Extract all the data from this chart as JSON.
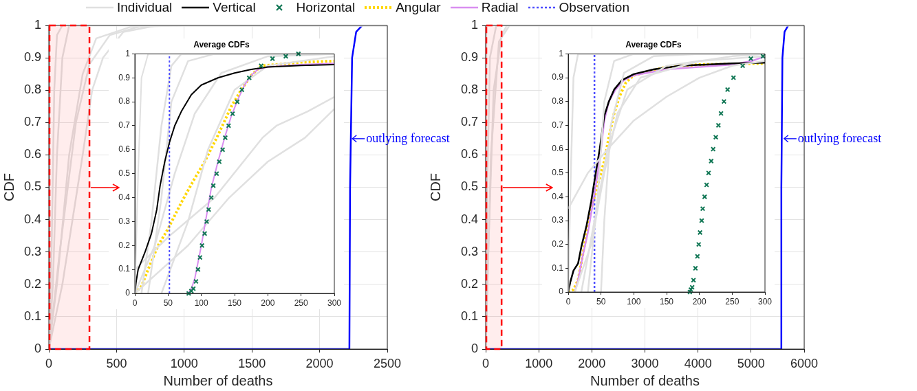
{
  "chart_data": [
    {
      "type": "line",
      "xlabel": "Number of deaths",
      "ylabel": "CDF",
      "xlim": [
        0,
        2500
      ],
      "xticks": [
        0,
        500,
        1000,
        1500,
        2000,
        2500
      ],
      "ylim": [
        0,
        1
      ],
      "yticks": [
        0,
        0.1,
        0.2,
        0.3,
        0.4,
        0.5,
        0.6,
        0.7,
        0.8,
        0.9,
        1
      ],
      "grid": true,
      "annotations": [
        {
          "text": "outlying forecast",
          "x": 2222,
          "y": 0.65
        }
      ],
      "bands": [
        {
          "axis": "x",
          "from": 0,
          "to": 300,
          "color": "#ff0000"
        }
      ],
      "series": [
        {
          "color": "#e0e0e0",
          "x": [
            0,
            20,
            40,
            60,
            100,
            2500
          ],
          "values": [
            0,
            0.3,
            0.8,
            0.97,
            1,
            1
          ]
        },
        {
          "color": "#e0e0e0",
          "x": [
            0,
            30,
            60,
            100,
            150,
            2500
          ],
          "values": [
            0,
            0.2,
            0.6,
            0.9,
            1,
            1
          ]
        },
        {
          "color": "#e0e0e0",
          "x": [
            0,
            60,
            150,
            250,
            350,
            600,
            1000,
            2500
          ],
          "values": [
            0,
            0.2,
            0.6,
            0.85,
            0.96,
            0.995,
            1,
            1
          ]
        },
        {
          "color": "#e0e0e0",
          "x": [
            0,
            80,
            200,
            300,
            450,
            700,
            2500
          ],
          "values": [
            0,
            0.3,
            0.7,
            0.88,
            0.97,
            1,
            1
          ]
        },
        {
          "color": "#e0e0e0",
          "x": [
            0,
            100,
            250,
            320,
            400,
            550,
            800,
            2500
          ],
          "values": [
            0,
            0.2,
            0.6,
            0.8,
            0.9,
            0.98,
            1,
            1
          ]
        },
        {
          "color": "#0000ff",
          "x": [
            0,
            2220,
            2225,
            2240,
            2270,
            2315
          ],
          "values": [
            0,
            0,
            0.5,
            0.9,
            0.98,
            1
          ]
        }
      ]
    },
    {
      "type": "line",
      "title": "Average CDFs",
      "xlim": [
        0,
        300
      ],
      "xticks": [
        0,
        50,
        100,
        150,
        200,
        250,
        300
      ],
      "ylim": [
        0,
        1
      ],
      "yticks": [
        0,
        0.1,
        0.2,
        0.3,
        0.4,
        0.5,
        0.6,
        0.7,
        0.8,
        0.9,
        1
      ],
      "legend": "top",
      "series": [
        {
          "name": "Individual",
          "color": "#e0e0e0",
          "x": [
            0,
            5,
            10,
            20,
            300
          ],
          "values": [
            0,
            0.5,
            0.9,
            1,
            1
          ]
        },
        {
          "color": "#e0e0e0",
          "x": [
            10,
            25,
            40,
            55,
            70,
            300
          ],
          "values": [
            0,
            0.3,
            0.7,
            0.95,
            1,
            1
          ]
        },
        {
          "color": "#e0e0e0",
          "x": [
            20,
            40,
            55,
            80,
            120,
            300
          ],
          "values": [
            0,
            0.4,
            0.8,
            0.97,
            1,
            1
          ]
        },
        {
          "color": "#e0e0e0",
          "x": [
            0,
            30,
            60,
            90,
            130,
            200,
            300
          ],
          "values": [
            0,
            0.2,
            0.5,
            0.75,
            0.92,
            0.99,
            1
          ]
        },
        {
          "color": "#e0e0e0",
          "x": [
            0,
            52,
            120,
            192,
            213,
            260,
            300
          ],
          "values": [
            0.1,
            0.24,
            0.4,
            0.65,
            0.7,
            0.76,
            0.82
          ]
        },
        {
          "color": "#e0e0e0",
          "x": [
            0,
            80,
            142,
            200,
            256,
            300
          ],
          "values": [
            0,
            0.2,
            0.4,
            0.55,
            0.65,
            0.77
          ]
        },
        {
          "color": "#e0e0e0",
          "x": [
            40,
            80,
            110,
            150,
            200,
            300
          ],
          "values": [
            0,
            0.3,
            0.6,
            0.85,
            0.95,
            0.99
          ]
        },
        {
          "name": "Vertical",
          "color": "#000000",
          "line_style": "solid",
          "x": [
            0,
            2,
            5,
            15,
            25,
            33,
            38,
            45,
            52,
            60,
            70,
            85,
            100,
            125,
            150,
            175,
            200,
            250,
            300
          ],
          "values": [
            0,
            0.05,
            0.1,
            0.17,
            0.25,
            0.35,
            0.45,
            0.55,
            0.63,
            0.7,
            0.76,
            0.83,
            0.87,
            0.9,
            0.92,
            0.935,
            0.945,
            0.952,
            0.955
          ]
        },
        {
          "name": "Horizontal",
          "type": "scatter",
          "marker": "cross",
          "color": "#117755",
          "x": [
            81,
            85,
            88,
            92,
            95,
            98,
            101,
            105,
            108,
            111,
            115,
            118,
            123,
            127,
            132,
            136,
            141,
            147,
            154,
            161,
            172,
            190,
            207,
            227,
            246
          ],
          "values": [
            0,
            0.01,
            0.02,
            0.05,
            0.1,
            0.15,
            0.2,
            0.25,
            0.3,
            0.35,
            0.4,
            0.45,
            0.5,
            0.55,
            0.6,
            0.65,
            0.7,
            0.75,
            0.8,
            0.85,
            0.9,
            0.95,
            0.98,
            0.99,
            1
          ]
        },
        {
          "name": "Angular",
          "color": "#ffd700",
          "line_style": "dotted",
          "x": [
            0,
            10,
            20,
            35,
            50,
            70,
            90,
            105,
            125,
            145,
            160,
            175,
            190,
            250,
            300
          ],
          "values": [
            0,
            0.03,
            0.1,
            0.2,
            0.27,
            0.38,
            0.48,
            0.55,
            0.66,
            0.78,
            0.85,
            0.91,
            0.95,
            0.965,
            0.97
          ]
        },
        {
          "name": "Radial",
          "color": "#d98ef0",
          "line_style": "solid",
          "x": [
            80,
            85,
            90,
            95,
            100,
            105,
            110,
            115,
            125,
            135,
            145,
            155,
            165,
            175,
            185,
            200,
            250,
            300
          ],
          "values": [
            0,
            0.02,
            0.06,
            0.13,
            0.2,
            0.28,
            0.36,
            0.44,
            0.55,
            0.65,
            0.74,
            0.81,
            0.87,
            0.91,
            0.935,
            0.945,
            0.955,
            0.96
          ]
        },
        {
          "name": "Observation",
          "color": "#4d4dff",
          "line_style": "dotted",
          "x": [
            52,
            52
          ],
          "values": [
            0,
            1
          ]
        }
      ]
    },
    {
      "type": "line",
      "xlabel": "Number of deaths",
      "ylabel": "CDF",
      "xlim": [
        0,
        6000
      ],
      "xticks": [
        0,
        1000,
        2000,
        3000,
        4000,
        5000,
        6000
      ],
      "ylim": [
        0,
        1
      ],
      "yticks": [
        0,
        0.1,
        0.2,
        0.3,
        0.4,
        0.5,
        0.6,
        0.7,
        0.8,
        0.9,
        1
      ],
      "grid": true,
      "annotations": [
        {
          "text": "outlying forecast",
          "x": 5570,
          "y": 0.65
        }
      ],
      "bands": [
        {
          "axis": "x",
          "from": 0,
          "to": 300,
          "color": "#ff0000"
        }
      ],
      "series": [
        {
          "color": "#e0e0e0",
          "x": [
            0,
            30,
            80,
            200,
            6000
          ],
          "values": [
            0,
            0.5,
            0.9,
            1,
            1
          ]
        },
        {
          "color": "#e0e0e0",
          "x": [
            0,
            100,
            250,
            450,
            6000
          ],
          "values": [
            0,
            0.6,
            0.95,
            1,
            1
          ]
        },
        {
          "color": "#e0e0e0",
          "x": [
            0,
            50,
            150,
            300,
            400,
            6000
          ],
          "values": [
            0,
            0.3,
            0.8,
            0.97,
            1,
            1
          ]
        },
        {
          "color": "#0000ff",
          "x": [
            0,
            5560,
            5570,
            5590,
            5630,
            5700
          ],
          "values": [
            0,
            0,
            0.5,
            0.9,
            0.98,
            1
          ]
        }
      ]
    },
    {
      "type": "line",
      "title": "Average CDFs",
      "xlim": [
        0,
        300
      ],
      "xticks": [
        0,
        50,
        100,
        150,
        200,
        250,
        300
      ],
      "ylim": [
        0,
        1
      ],
      "yticks": [
        0,
        0.1,
        0.2,
        0.3,
        0.4,
        0.5,
        0.6,
        0.7,
        0.8,
        0.9,
        1
      ],
      "series": [
        {
          "color": "#e0e0e0",
          "x": [
            0,
            3,
            8,
            15,
            300
          ],
          "values": [
            0,
            0.4,
            0.9,
            1,
            1
          ]
        },
        {
          "color": "#e0e0e0",
          "x": [
            30,
            45,
            55,
            70,
            100,
            300
          ],
          "values": [
            0,
            0.4,
            0.8,
            0.97,
            1,
            1
          ]
        },
        {
          "color": "#e0e0e0",
          "x": [
            50,
            55,
            65,
            85,
            130,
            200,
            300
          ],
          "values": [
            0,
            0.3,
            0.7,
            0.92,
            0.99,
            1,
            1
          ]
        },
        {
          "color": "#e0e0e0",
          "x": [
            0,
            30,
            60,
            100,
            150,
            200,
            250,
            300
          ],
          "values": [
            0.35,
            0.5,
            0.6,
            0.72,
            0.82,
            0.9,
            0.95,
            0.97
          ]
        },
        {
          "color": "#e0e0e0",
          "x": [
            20,
            40,
            60,
            90,
            150,
            250,
            300
          ],
          "values": [
            0,
            0.3,
            0.6,
            0.85,
            0.95,
            0.99,
            1
          ]
        },
        {
          "color": "#e0e0e0",
          "x": [
            10,
            35,
            55,
            75,
            110,
            200,
            300
          ],
          "values": [
            0,
            0.2,
            0.5,
            0.75,
            0.9,
            0.97,
            0.99
          ]
        },
        {
          "color": "#000000",
          "line_style": "solid",
          "x": [
            0,
            3,
            8,
            15,
            20,
            28,
            35,
            42,
            48,
            52,
            55,
            62,
            70,
            82,
            100,
            130,
            170,
            250,
            300
          ],
          "values": [
            0,
            0.04,
            0.09,
            0.12,
            0.19,
            0.28,
            0.38,
            0.5,
            0.6,
            0.68,
            0.74,
            0.8,
            0.85,
            0.89,
            0.915,
            0.935,
            0.95,
            0.96,
            0.963
          ]
        },
        {
          "type": "scatter",
          "marker": "cross",
          "color": "#117755",
          "x": [
            185.5,
            187,
            189,
            191,
            194,
            197,
            199,
            201,
            203.5,
            205,
            208,
            211,
            214,
            218,
            221,
            225,
            229,
            233,
            237.5,
            243,
            252,
            266,
            278.5,
            297
          ],
          "values": [
            0,
            0.01,
            0.02,
            0.05,
            0.1,
            0.15,
            0.2,
            0.25,
            0.3,
            0.35,
            0.4,
            0.45,
            0.5,
            0.55,
            0.6,
            0.65,
            0.7,
            0.75,
            0.8,
            0.85,
            0.9,
            0.95,
            0.98,
            0.99
          ]
        },
        {
          "color": "#ffd700",
          "line_style": "dotted",
          "x": [
            0,
            8,
            15,
            25,
            35,
            48,
            55,
            62,
            70,
            78,
            88,
            100,
            150,
            200,
            300
          ],
          "values": [
            0,
            0.01,
            0.05,
            0.2,
            0.35,
            0.48,
            0.55,
            0.65,
            0.75,
            0.82,
            0.88,
            0.91,
            0.945,
            0.955,
            0.96
          ]
        },
        {
          "color": "#d98ef0",
          "line_style": "solid",
          "x": [
            10,
            15,
            22,
            30,
            38,
            45,
            50,
            55,
            62,
            72,
            85,
            100,
            150,
            250,
            280,
            300
          ],
          "values": [
            0,
            0.05,
            0.15,
            0.25,
            0.38,
            0.5,
            0.6,
            0.72,
            0.8,
            0.85,
            0.89,
            0.91,
            0.935,
            0.955,
            0.97,
            0.99
          ]
        },
        {
          "color": "#4d4dff",
          "line_style": "dotted",
          "x": [
            40,
            40
          ],
          "values": [
            0,
            1
          ]
        }
      ]
    }
  ]
}
